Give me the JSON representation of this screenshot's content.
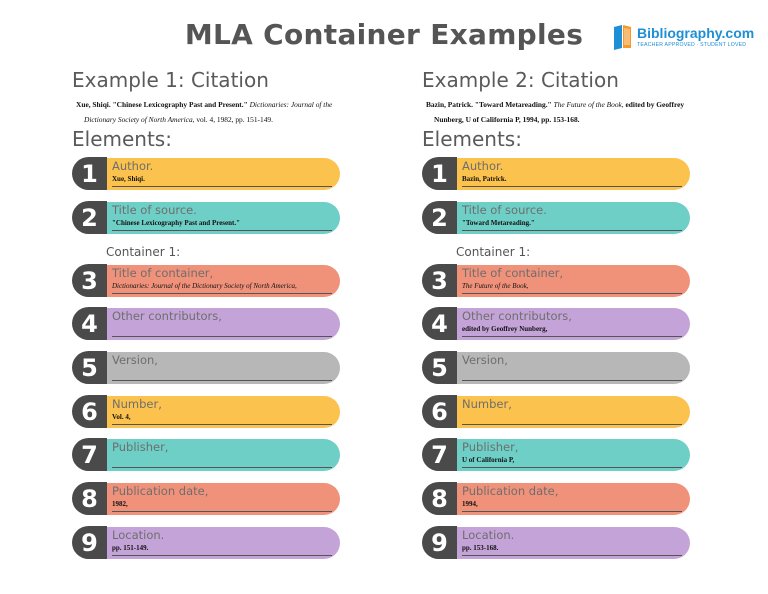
{
  "title": "MLA Container Examples",
  "logo": {
    "name": "Bibliography.com",
    "tagline": "TEACHER APPROVED · STUDENT LOVED",
    "color": "#1e8fd6"
  },
  "colors": {
    "yellow": "#fbc24d",
    "teal": "#6ecfc7",
    "salmon": "#f0917a",
    "purple": "#c4a4d8",
    "gray": "#b7b7b7",
    "number_bg": "#4a4a4a"
  },
  "example1": {
    "heading": "Example 1: Citation",
    "citation": {
      "author": "Xue, Shiqi.",
      "title": "\"Chinese Lexicography Past and Present.\"",
      "container": "Dictionaries: Journal of the Dictionary Society of North America,",
      "rest": "vol. 4, 1982, pp. 151-149."
    },
    "elements_heading": "Elements:",
    "container_label": "Container 1:",
    "elements": [
      {
        "num": "1",
        "label": "Author.",
        "value": "Xue, Shiqi."
      },
      {
        "num": "2",
        "label": "Title of source.",
        "value": "\"Chinese Lexicography Past and Present.\""
      },
      {
        "num": "3",
        "label": "Title of container,",
        "value": "Dictionaries: Journal of the Dictionary Society of North America,"
      },
      {
        "num": "4",
        "label": "Other contributors,",
        "value": ""
      },
      {
        "num": "5",
        "label": "Version,",
        "value": ""
      },
      {
        "num": "6",
        "label": "Number,",
        "value": "Vol. 4,"
      },
      {
        "num": "7",
        "label": "Publisher,",
        "value": ""
      },
      {
        "num": "8",
        "label": "Publication date,",
        "value": "1982,"
      },
      {
        "num": "9",
        "label": "Location.",
        "value": "pp. 151-149."
      }
    ]
  },
  "example2": {
    "heading": "Example 2: Citation",
    "citation": {
      "author": "Bazin, Patrick.",
      "title": "\"Toward Metareading.\"",
      "container": "The Future of the Book,",
      "rest": "edited by Geoffrey Nunberg, U of California P, 1994, pp. 153-168."
    },
    "elements_heading": "Elements:",
    "container_label": "Container 1:",
    "elements": [
      {
        "num": "1",
        "label": "Author.",
        "value": "Bazin, Patrick."
      },
      {
        "num": "2",
        "label": "Title of source.",
        "value": "\"Toward Metareading.\""
      },
      {
        "num": "3",
        "label": "Title of container,",
        "value": "The Future of the Book,"
      },
      {
        "num": "4",
        "label": "Other contributors,",
        "value": "edited by Geoffrey Nunberg,"
      },
      {
        "num": "5",
        "label": "Version,",
        "value": ""
      },
      {
        "num": "6",
        "label": "Number,",
        "value": ""
      },
      {
        "num": "7",
        "label": "Publisher,",
        "value": "U of California P,"
      },
      {
        "num": "8",
        "label": "Publication date,",
        "value": "1994,"
      },
      {
        "num": "9",
        "label": "Location.",
        "value": "pp. 153-168."
      }
    ]
  }
}
